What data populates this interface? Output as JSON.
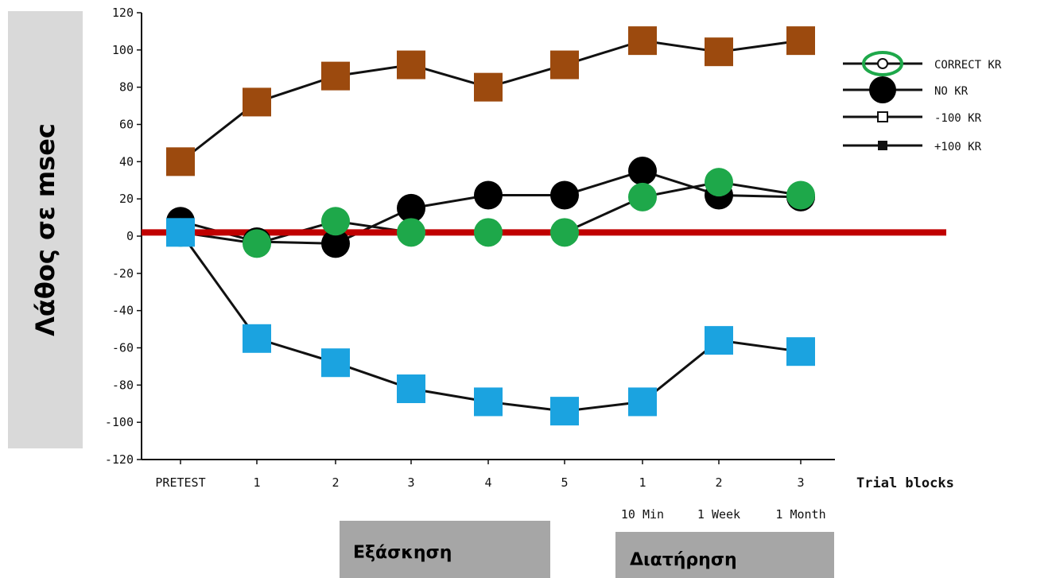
{
  "chart_data": {
    "type": "line",
    "ylabel": "Λάθος σε msec",
    "xlabel": "Trial blocks",
    "ylim": [
      -120,
      120
    ],
    "yticks": [
      "120",
      "100",
      "80",
      "60",
      "40",
      "20",
      "0",
      "-20",
      "-40",
      "-60",
      "-80",
      "-100",
      "-120"
    ],
    "categories": [
      "PRETEST",
      "1",
      "2",
      "3",
      "4",
      "5",
      "1",
      "2",
      "3"
    ],
    "retention_sublabels": [
      "10 Min",
      "1 Week",
      "1 Month"
    ],
    "reference_line": {
      "y": 2,
      "color": "#c00000"
    },
    "phases": [
      "Εξάσκηση",
      "Διατήρηση"
    ],
    "legend": [
      "CORRECT KR",
      "NO KR",
      "-100 KR",
      "+100 KR"
    ],
    "series": [
      {
        "name": "+100 KR",
        "color": "#9c4a0e",
        "marker": "square",
        "line": true,
        "values": [
          40,
          72,
          86,
          92,
          80,
          92,
          105,
          99,
          105
        ]
      },
      {
        "name": "NO KR",
        "color": "#000000",
        "marker": "circle",
        "line": true,
        "values": [
          8,
          -3,
          -4,
          15,
          22,
          22,
          35,
          22,
          21
        ]
      },
      {
        "name": "CORRECT KR",
        "color": "#1ea84a",
        "marker": "circle",
        "line": true,
        "values": [
          2,
          -4,
          8,
          2,
          2,
          2,
          21,
          29,
          22
        ]
      },
      {
        "name": "-100 KR",
        "color": "#1ba3e0",
        "marker": "square",
        "line": true,
        "values": [
          2,
          -55,
          -68,
          -82,
          -89,
          -94,
          -89,
          -56,
          -62
        ]
      }
    ]
  }
}
